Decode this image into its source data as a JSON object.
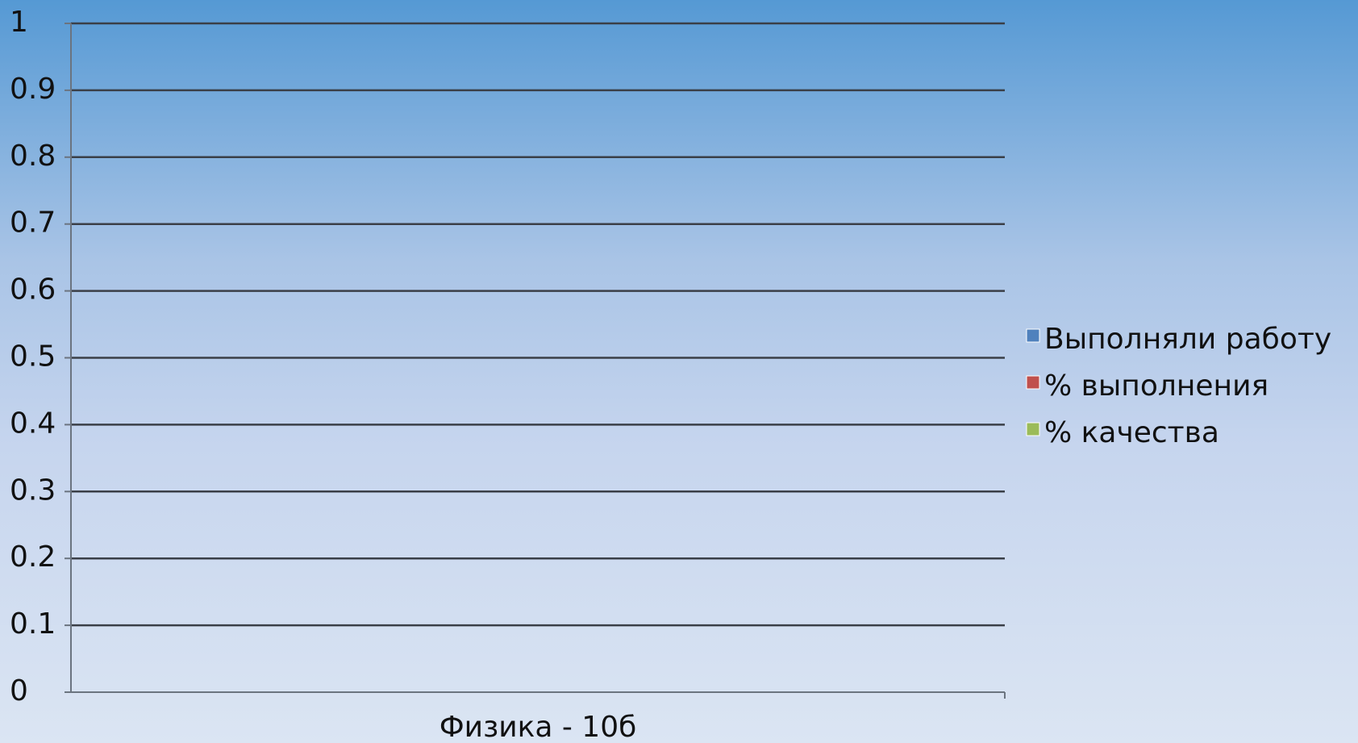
{
  "chart_data": {
    "type": "bar",
    "categories": [
      "Физика - 10б"
    ],
    "series": [
      {
        "name": "Выполняли работу",
        "color": "#4f81bd",
        "values": [
          0
        ]
      },
      {
        "name": "% выполнения",
        "color": "#c0504d",
        "values": [
          0
        ]
      },
      {
        "name": "% качества",
        "color": "#9bbb59",
        "values": [
          0
        ]
      }
    ],
    "ylim": [
      0,
      1
    ],
    "yticks": [
      0,
      0.1,
      0.2,
      0.3,
      0.4,
      0.5,
      0.6,
      0.7,
      0.8,
      0.9,
      1
    ],
    "grid": true,
    "legend": "right"
  }
}
